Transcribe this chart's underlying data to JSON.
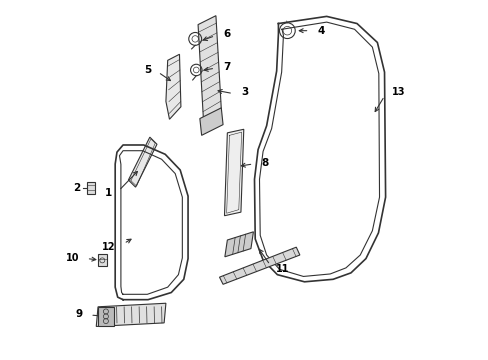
{
  "background_color": "#ffffff",
  "line_color": "#333333",
  "label_color": "#000000",
  "parts": [
    {
      "id": 1
    },
    {
      "id": 2
    },
    {
      "id": 3
    },
    {
      "id": 4
    },
    {
      "id": 5
    },
    {
      "id": 6
    },
    {
      "id": 7
    },
    {
      "id": 8
    },
    {
      "id": 9
    },
    {
      "id": 10
    },
    {
      "id": 11
    },
    {
      "id": 12
    },
    {
      "id": 13
    }
  ]
}
